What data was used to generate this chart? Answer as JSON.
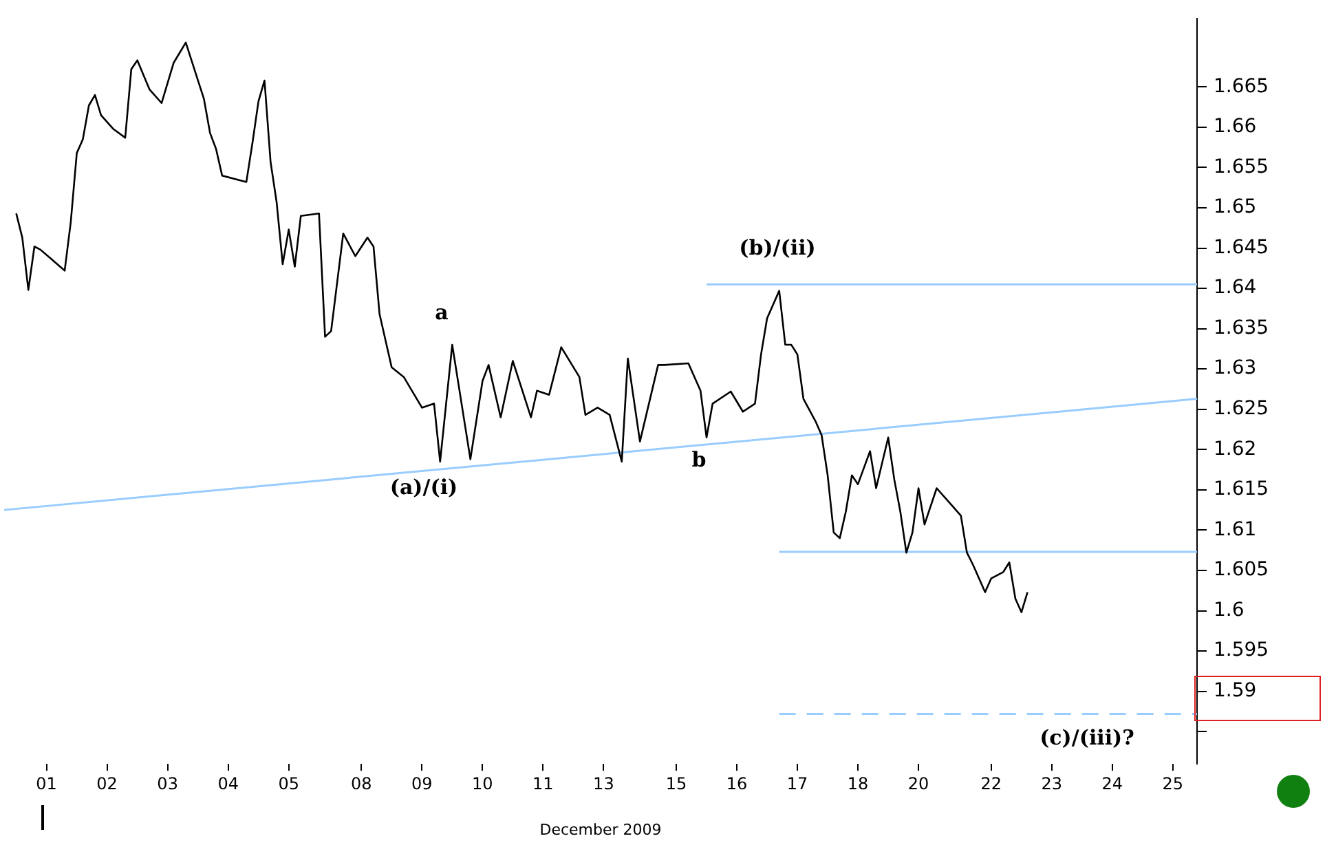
{
  "chart_data": {
    "type": "line",
    "xlabel": "December 2009",
    "categories": [
      null,
      null,
      null,
      null,
      null,
      null,
      null,
      "01",
      null,
      null,
      null,
      null,
      null,
      null,
      null,
      null,
      null,
      "02",
      null,
      null,
      null,
      null,
      null,
      null,
      null,
      null,
      null,
      "03",
      null,
      null,
      null,
      null,
      null,
      null,
      null,
      null,
      null,
      "04",
      null,
      null,
      null,
      null,
      null,
      null,
      null,
      null,
      null,
      "05",
      null,
      null,
      null,
      null,
      null,
      null,
      null,
      null,
      null,
      null,
      null,
      "08",
      null,
      null,
      null,
      null,
      null,
      null,
      null,
      null,
      null,
      "09",
      null,
      null,
      null,
      null,
      null,
      null,
      null,
      null,
      null,
      "10",
      null,
      null,
      null,
      null,
      null,
      null,
      null,
      null,
      null,
      "11",
      null,
      null,
      null,
      null,
      null,
      null,
      null,
      null,
      null,
      "13",
      null,
      null,
      null,
      null,
      null,
      null,
      null,
      null,
      null,
      null,
      null,
      "15",
      null,
      null,
      null,
      null,
      null,
      null,
      null,
      null,
      null,
      "16",
      null,
      null,
      null,
      null,
      null,
      null,
      null,
      null,
      null,
      "17",
      null,
      null,
      null,
      null,
      null,
      null,
      null,
      null,
      null,
      "18",
      null,
      null,
      null,
      null,
      null,
      null,
      null,
      null,
      null,
      "20",
      null,
      null,
      null,
      null,
      null,
      null,
      null,
      null,
      null,
      null,
      null,
      "22",
      null,
      null,
      null,
      null,
      null,
      null,
      null,
      null,
      null,
      "23",
      null,
      null,
      null,
      null,
      null,
      null,
      null,
      null,
      null,
      "24",
      null,
      null,
      null,
      null,
      null,
      null,
      null,
      null,
      null,
      "25",
      null,
      null,
      null,
      null
    ],
    "ylim": [
      1.581,
      1.6735
    ],
    "yticks": [
      {
        "value": 1.585,
        "label": null
      },
      1.59,
      1.595,
      1.6,
      1.605,
      1.61,
      1.615,
      1.62,
      1.625,
      1.63,
      1.635,
      1.64,
      1.645,
      1.65,
      1.655,
      1.66,
      1.665
    ],
    "series": [
      {
        "type": "line",
        "color": "#000000",
        "values": [
          null,
          null,
          1.6493,
          1.6463,
          1.6398,
          1.6452,
          1.6448,
          null,
          1.6435,
          null,
          1.6422,
          1.6482,
          1.6568,
          1.6585,
          1.6627,
          1.664,
          1.6615,
          null,
          1.6598,
          null,
          1.6587,
          1.6672,
          1.6683,
          null,
          1.6647,
          null,
          1.663,
          null,
          1.668,
          null,
          1.6705,
          null,
          null,
          1.6635,
          1.6593,
          1.6573,
          1.654,
          null,
          null,
          null,
          1.6532,
          1.658,
          1.6632,
          1.6658,
          1.6557,
          1.6507,
          1.643,
          1.6473,
          1.6427,
          1.649,
          null,
          null,
          1.6493,
          1.634,
          1.6347,
          null,
          1.6468,
          null,
          1.644,
          null,
          1.6463,
          1.6452,
          1.6368,
          null,
          1.6302,
          null,
          1.629,
          null,
          null,
          1.6252,
          null,
          1.6257,
          1.6185,
          null,
          1.633,
          null,
          null,
          1.6188,
          null,
          1.6285,
          1.6305,
          null,
          1.624,
          null,
          1.631,
          null,
          null,
          1.624,
          1.6273,
          null,
          1.6268,
          null,
          1.6327,
          null,
          null,
          1.629,
          1.6243,
          null,
          1.6252,
          null,
          1.6243,
          null,
          1.6185,
          1.6313,
          null,
          1.621,
          null,
          null,
          1.6305,
          1.6305,
          null,
          null,
          null,
          1.6307,
          null,
          1.6273,
          1.6215,
          1.6257,
          null,
          null,
          1.6272,
          null,
          1.6247,
          null,
          1.6257,
          1.6318,
          1.6363,
          null,
          1.6397,
          1.633,
          1.633,
          1.6318,
          1.6263,
          null,
          1.6235,
          1.6218,
          1.6168,
          1.6097,
          1.609,
          1.6123,
          1.6168,
          1.6157,
          null,
          1.6198,
          1.6152,
          null,
          1.6215,
          1.6163,
          1.6123,
          1.6072,
          1.6097,
          1.6152,
          1.6107,
          null,
          1.6152,
          null,
          1.6135,
          null,
          1.6118,
          1.6072,
          1.6057,
          null,
          1.6023,
          1.604,
          null,
          1.6048,
          1.606,
          1.6015,
          1.5998,
          1.6023,
          null,
          null,
          null,
          null,
          null,
          null,
          null,
          null,
          null,
          null,
          null,
          null,
          null,
          null,
          null,
          null,
          null,
          null,
          null,
          null,
          null,
          null,
          null,
          null,
          null,
          null,
          null,
          null
        ]
      },
      {
        "type": "line",
        "color": "#99ccff",
        "values": [
          1.6125,
          null,
          null,
          null,
          null,
          null,
          null,
          null,
          null,
          null,
          null,
          null,
          null,
          null,
          null,
          null,
          null,
          null,
          null,
          null,
          null,
          null,
          null,
          null,
          null,
          null,
          null,
          null,
          null,
          null,
          null,
          null,
          null,
          null,
          null,
          null,
          null,
          null,
          null,
          null,
          null,
          null,
          null,
          null,
          null,
          null,
          null,
          null,
          null,
          null,
          null,
          null,
          null,
          null,
          null,
          null,
          null,
          null,
          null,
          null,
          null,
          null,
          null,
          null,
          null,
          null,
          null,
          null,
          null,
          null,
          null,
          null,
          null,
          null,
          null,
          null,
          null,
          null,
          null,
          null,
          null,
          null,
          null,
          null,
          null,
          null,
          null,
          null,
          null,
          null,
          null,
          null,
          null,
          null,
          null,
          null,
          null,
          null,
          null,
          null,
          null,
          null,
          null,
          null,
          null,
          null,
          null,
          null,
          null,
          null,
          null,
          null,
          null,
          null,
          null,
          null,
          null,
          null,
          null,
          null,
          null,
          null,
          null,
          null,
          null,
          null,
          null,
          null,
          null,
          null,
          null,
          null,
          null,
          null,
          null,
          null,
          null,
          null,
          null,
          null,
          null,
          null,
          null,
          null,
          null,
          null,
          null,
          null,
          null,
          null,
          null,
          null,
          null,
          null,
          null,
          null,
          null,
          null,
          null,
          null,
          null,
          null,
          null,
          null,
          null,
          null,
          null,
          null,
          null,
          null,
          null,
          null,
          null,
          null,
          null,
          null,
          null,
          null,
          null,
          null,
          null,
          null,
          null,
          null,
          null,
          null,
          null,
          null,
          null,
          null,
          null,
          null,
          null,
          null,
          null,
          null,
          null,
          1.6263
        ]
      },
      {
        "type": "line",
        "color": "#99ccff",
        "values": [
          null,
          null,
          null,
          null,
          null,
          null,
          null,
          null,
          null,
          null,
          null,
          null,
          null,
          null,
          null,
          null,
          null,
          null,
          null,
          null,
          null,
          null,
          null,
          null,
          null,
          null,
          null,
          null,
          null,
          null,
          null,
          null,
          null,
          null,
          null,
          null,
          null,
          null,
          null,
          null,
          null,
          null,
          null,
          null,
          null,
          null,
          null,
          null,
          null,
          null,
          null,
          null,
          null,
          null,
          null,
          null,
          null,
          null,
          null,
          null,
          null,
          null,
          null,
          null,
          null,
          null,
          null,
          null,
          null,
          null,
          null,
          null,
          null,
          null,
          null,
          null,
          null,
          null,
          null,
          null,
          null,
          null,
          null,
          null,
          null,
          null,
          null,
          null,
          null,
          null,
          null,
          null,
          null,
          null,
          null,
          null,
          null,
          null,
          null,
          null,
          null,
          null,
          null,
          null,
          null,
          null,
          null,
          null,
          null,
          null,
          null,
          null,
          null,
          null,
          null,
          null,
          1.6405,
          null,
          null,
          null,
          null,
          null,
          null,
          null,
          null,
          null,
          null,
          null,
          null,
          null,
          null,
          null,
          null,
          null,
          null,
          null,
          null,
          null,
          null,
          null,
          null,
          null,
          null,
          null,
          null,
          null,
          null,
          null,
          null,
          null,
          null,
          null,
          null,
          null,
          null,
          null,
          null,
          null,
          null,
          null,
          null,
          null,
          null,
          null,
          null,
          null,
          null,
          null,
          null,
          null,
          null,
          null,
          null,
          null,
          null,
          null,
          null,
          null,
          null,
          null,
          null,
          null,
          null,
          null,
          null,
          null,
          null,
          null,
          null,
          null,
          null,
          null,
          null,
          null,
          null,
          null,
          null,
          1.6405
        ]
      },
      {
        "type": "line",
        "color": "#99ccff",
        "values": [
          null,
          null,
          null,
          null,
          null,
          null,
          null,
          null,
          null,
          null,
          null,
          null,
          null,
          null,
          null,
          null,
          null,
          null,
          null,
          null,
          null,
          null,
          null,
          null,
          null,
          null,
          null,
          null,
          null,
          null,
          null,
          null,
          null,
          null,
          null,
          null,
          null,
          null,
          null,
          null,
          null,
          null,
          null,
          null,
          null,
          null,
          null,
          null,
          null,
          null,
          null,
          null,
          null,
          null,
          null,
          null,
          null,
          null,
          null,
          null,
          null,
          null,
          null,
          null,
          null,
          null,
          null,
          null,
          null,
          null,
          null,
          null,
          null,
          null,
          null,
          null,
          null,
          null,
          null,
          null,
          null,
          null,
          null,
          null,
          null,
          null,
          null,
          null,
          null,
          null,
          null,
          null,
          null,
          null,
          null,
          null,
          null,
          null,
          null,
          null,
          null,
          null,
          null,
          null,
          null,
          null,
          null,
          null,
          null,
          null,
          null,
          null,
          null,
          null,
          null,
          null,
          null,
          null,
          null,
          null,
          null,
          null,
          null,
          null,
          null,
          null,
          null,
          null,
          1.6073,
          null,
          null,
          null,
          null,
          null,
          null,
          null,
          null,
          null,
          null,
          null,
          null,
          null,
          null,
          null,
          null,
          null,
          null,
          null,
          null,
          null,
          null,
          null,
          null,
          null,
          null,
          null,
          null,
          null,
          null,
          null,
          null,
          null,
          null,
          null,
          null,
          null,
          null,
          null,
          null,
          null,
          null,
          null,
          null,
          null,
          null,
          null,
          null,
          null,
          null,
          null,
          null,
          null,
          null,
          null,
          null,
          null,
          null,
          null,
          null,
          null,
          null,
          null,
          null,
          null,
          null,
          null,
          null,
          1.6073
        ]
      },
      {
        "type": "line",
        "color": "#99ccff",
        "line_style": "dashed",
        "values": [
          null,
          null,
          null,
          null,
          null,
          null,
          null,
          null,
          null,
          null,
          null,
          null,
          null,
          null,
          null,
          null,
          null,
          null,
          null,
          null,
          null,
          null,
          null,
          null,
          null,
          null,
          null,
          null,
          null,
          null,
          null,
          null,
          null,
          null,
          null,
          null,
          null,
          null,
          null,
          null,
          null,
          null,
          null,
          null,
          null,
          null,
          null,
          null,
          null,
          null,
          null,
          null,
          null,
          null,
          null,
          null,
          null,
          null,
          null,
          null,
          null,
          null,
          null,
          null,
          null,
          null,
          null,
          null,
          null,
          null,
          null,
          null,
          null,
          null,
          null,
          null,
          null,
          null,
          null,
          null,
          null,
          null,
          null,
          null,
          null,
          null,
          null,
          null,
          null,
          null,
          null,
          null,
          null,
          null,
          null,
          null,
          null,
          null,
          null,
          null,
          null,
          null,
          null,
          null,
          null,
          null,
          null,
          null,
          null,
          null,
          null,
          null,
          null,
          null,
          null,
          null,
          null,
          null,
          null,
          null,
          null,
          null,
          null,
          null,
          null,
          null,
          null,
          null,
          1.5872,
          null,
          null,
          null,
          null,
          null,
          null,
          null,
          null,
          null,
          null,
          null,
          null,
          null,
          null,
          null,
          null,
          null,
          null,
          null,
          null,
          null,
          null,
          null,
          null,
          null,
          null,
          null,
          null,
          null,
          null,
          null,
          null,
          null,
          null,
          null,
          null,
          null,
          null,
          null,
          null,
          null,
          null,
          null,
          null,
          null,
          null,
          null,
          null,
          null,
          null,
          null,
          null,
          null,
          null,
          null,
          null,
          null,
          null,
          null,
          null,
          null,
          null,
          null,
          null,
          null,
          null,
          null,
          null,
          1.5872
        ]
      }
    ],
    "annotations": [
      "a",
      "(a)/(i)",
      "b",
      "(b)/(ii)",
      "(c)/(iii)?"
    ]
  }
}
